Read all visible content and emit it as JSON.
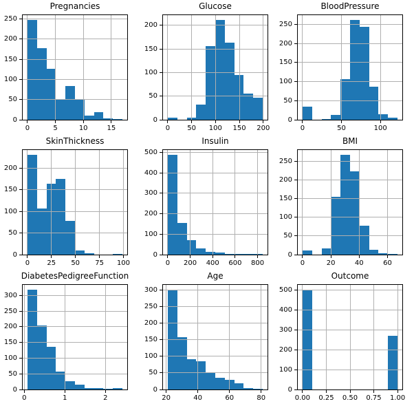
{
  "figure": {
    "kind": "pandas-dataframe-histogram-grid",
    "rows": 3,
    "cols": 3
  },
  "style": {
    "bar_color": "#1f77b4",
    "grid_color": "#b0b0b0",
    "axis_color": "#000000",
    "text_color": "#000000",
    "background": "#ffffff"
  },
  "chart_data": [
    {
      "type": "bar",
      "subtype": "histogram",
      "title": "Pregnancies",
      "bin_start": 0,
      "bin_width": 1.7,
      "values": [
        247,
        178,
        127,
        50,
        83,
        52,
        11,
        19,
        4,
        1
      ],
      "xlim": [
        -0.85,
        17.85
      ],
      "ylim": [
        0,
        259.35
      ],
      "xticks": [
        0,
        5,
        10,
        15
      ],
      "xtick_labels": [
        "0",
        "5",
        "10",
        "15"
      ],
      "yticks": [
        0,
        50,
        100,
        150,
        200,
        250
      ],
      "ytick_labels": [
        "0",
        "50",
        "100",
        "150",
        "200",
        "250"
      ],
      "grid": true,
      "legend": false
    },
    {
      "type": "bar",
      "subtype": "histogram",
      "title": "Glucose",
      "bin_start": 0,
      "bin_width": 19.9,
      "values": [
        5,
        0,
        4,
        32,
        156,
        211,
        163,
        95,
        56,
        46
      ],
      "xlim": [
        -9.95,
        208.95
      ],
      "ylim": [
        0,
        221.55
      ],
      "xticks": [
        0,
        50,
        100,
        150,
        200
      ],
      "xtick_labels": [
        "0",
        "50",
        "100",
        "150",
        "200"
      ],
      "yticks": [
        0,
        50,
        100,
        150,
        200
      ],
      "ytick_labels": [
        "0",
        "50",
        "100",
        "150",
        "200"
      ],
      "grid": true,
      "legend": false
    },
    {
      "type": "bar",
      "subtype": "histogram",
      "title": "BloodPressure",
      "bin_start": 0,
      "bin_width": 12.2,
      "values": [
        35,
        0,
        2,
        13,
        107,
        261,
        243,
        87,
        14,
        6
      ],
      "xlim": [
        -6.1,
        128.1
      ],
      "ylim": [
        0,
        274.05
      ],
      "xticks": [
        0,
        50,
        100
      ],
      "xtick_labels": [
        "0",
        "50",
        "100"
      ],
      "yticks": [
        0,
        50,
        100,
        150,
        200,
        250
      ],
      "ytick_labels": [
        "0",
        "50",
        "100",
        "150",
        "200",
        "250"
      ],
      "grid": true,
      "legend": false
    },
    {
      "type": "bar",
      "subtype": "histogram",
      "title": "SkinThickness",
      "bin_start": 0,
      "bin_width": 9.9,
      "values": [
        231,
        107,
        165,
        175,
        78,
        9,
        3,
        0,
        0,
        2
      ],
      "xlim": [
        -4.95,
        103.95
      ],
      "ylim": [
        0,
        242.55
      ],
      "xticks": [
        0,
        25,
        50,
        75,
        100
      ],
      "xtick_labels": [
        "0",
        "25",
        "50",
        "75",
        "100"
      ],
      "yticks": [
        0,
        50,
        100,
        150,
        200
      ],
      "ytick_labels": [
        "0",
        "50",
        "100",
        "150",
        "200"
      ],
      "grid": true,
      "legend": false
    },
    {
      "type": "bar",
      "subtype": "histogram",
      "title": "Insulin",
      "bin_start": 0,
      "bin_width": 84.6,
      "values": [
        487,
        155,
        70,
        30,
        12,
        9,
        5,
        2,
        2,
        4
      ],
      "xlim": [
        -42.3,
        888.3
      ],
      "ylim": [
        0,
        511.35
      ],
      "xticks": [
        0,
        200,
        400,
        600,
        800
      ],
      "xtick_labels": [
        "0",
        "200",
        "400",
        "600",
        "800"
      ],
      "yticks": [
        0,
        100,
        200,
        300,
        400,
        500
      ],
      "ytick_labels": [
        "0",
        "100",
        "200",
        "300",
        "400",
        "500"
      ],
      "grid": true,
      "legend": false
    },
    {
      "type": "bar",
      "subtype": "histogram",
      "title": "BMI",
      "bin_start": 0,
      "bin_width": 6.71,
      "values": [
        11,
        0,
        17,
        156,
        268,
        224,
        78,
        13,
        3,
        2
      ],
      "xlim": [
        -3.355,
        70.455
      ],
      "ylim": [
        0,
        281.4
      ],
      "xticks": [
        0,
        20,
        40,
        60
      ],
      "xtick_labels": [
        "0",
        "20",
        "40",
        "60"
      ],
      "yticks": [
        0,
        50,
        100,
        150,
        200,
        250
      ],
      "ytick_labels": [
        "0",
        "50",
        "100",
        "150",
        "200",
        "250"
      ],
      "grid": true,
      "legend": false
    },
    {
      "type": "bar",
      "subtype": "histogram",
      "title": "DiabetesPedigreeFunction",
      "bin_start": 0.078,
      "bin_width": 0.2342,
      "values": [
        318,
        205,
        137,
        57,
        27,
        16,
        4,
        4,
        2,
        5
      ],
      "xlim": [
        -0.0391,
        2.5371
      ],
      "ylim": [
        0,
        333.9
      ],
      "xticks": [
        0,
        1,
        2
      ],
      "xtick_labels": [
        "0",
        "1",
        "2"
      ],
      "yticks": [
        0,
        50,
        100,
        150,
        200,
        250,
        300
      ],
      "ytick_labels": [
        "0",
        "50",
        "100",
        "150",
        "200",
        "250",
        "300"
      ],
      "grid": true,
      "legend": false
    },
    {
      "type": "bar",
      "subtype": "histogram",
      "title": "Age",
      "bin_start": 21,
      "bin_width": 6,
      "values": [
        300,
        157,
        92,
        86,
        52,
        35,
        28,
        18,
        4,
        2
      ],
      "xlim": [
        18,
        84
      ],
      "ylim": [
        0,
        315
      ],
      "xticks": [
        20,
        40,
        60,
        80
      ],
      "xtick_labels": [
        "20",
        "40",
        "60",
        "80"
      ],
      "yticks": [
        0,
        50,
        100,
        150,
        200,
        250,
        300
      ],
      "ytick_labels": [
        "0",
        "50",
        "100",
        "150",
        "200",
        "250",
        "300"
      ],
      "grid": true,
      "legend": false
    },
    {
      "type": "bar",
      "subtype": "histogram",
      "title": "Outcome",
      "bin_start": 0,
      "bin_width": 0.1,
      "values": [
        500,
        0,
        0,
        0,
        0,
        0,
        0,
        0,
        0,
        268
      ],
      "xlim": [
        -0.05,
        1.05
      ],
      "ylim": [
        0,
        525
      ],
      "xticks": [
        0,
        0.25,
        0.5,
        0.75,
        1
      ],
      "xtick_labels": [
        "0.00",
        "0.25",
        "0.50",
        "0.75",
        "1.00"
      ],
      "yticks": [
        0,
        100,
        200,
        300,
        400,
        500
      ],
      "ytick_labels": [
        "0",
        "100",
        "200",
        "300",
        "400",
        "500"
      ],
      "grid": true,
      "legend": false
    }
  ]
}
